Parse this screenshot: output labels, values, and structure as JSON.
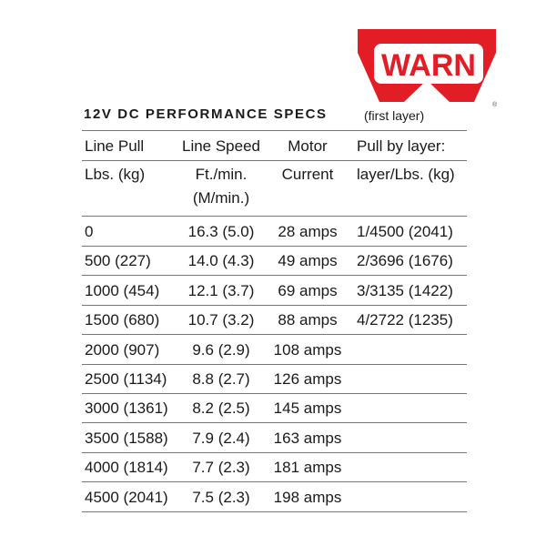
{
  "logo": {
    "text": "WARN",
    "mark": "®"
  },
  "title": "12V DC PERFORMANCE SPECS",
  "subtitle": "(first layer)",
  "table": {
    "header": [
      [
        "Line Pull",
        "Line Speed",
        "Motor",
        "Pull by layer:"
      ],
      [
        "Lbs. (kg)",
        "Ft./min. (M/min.)",
        "Current",
        "layer/Lbs. (kg)"
      ]
    ],
    "rows": [
      [
        "0",
        "16.3 (5.0)",
        "28 amps",
        "1/4500 (2041)"
      ],
      [
        "500 (227)",
        "14.0 (4.3)",
        "49 amps",
        "2/3696 (1676)"
      ],
      [
        "1000 (454)",
        "12.1 (3.7)",
        "69 amps",
        "3/3135 (1422)"
      ],
      [
        "1500 (680)",
        "10.7 (3.2)",
        "88 amps",
        "4/2722 (1235)"
      ],
      [
        "2000 (907)",
        "9.6 (2.9)",
        "108 amps",
        null
      ],
      [
        "2500 (1134)",
        "8.8 (2.7)",
        "126 amps",
        null
      ],
      [
        "3000 (1361)",
        "8.2 (2.5)",
        "145 amps",
        null
      ],
      [
        "3500 (1588)",
        "7.9 (2.4)",
        "163 amps",
        null
      ],
      [
        "4000 (1814)",
        "7.7 (2.3)",
        "181 amps",
        null
      ],
      [
        "4500 (2041)",
        "7.5 (2.3)",
        "198 amps",
        null
      ]
    ]
  }
}
